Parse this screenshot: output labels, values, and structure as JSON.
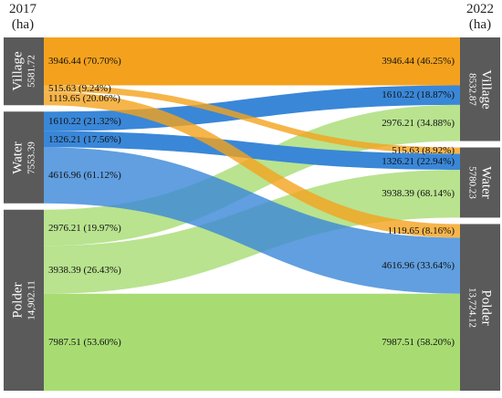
{
  "headers": {
    "left_year": "2017",
    "left_unit": "(ha)",
    "right_year": "2022",
    "right_unit": "(ha)"
  },
  "colors": {
    "node": "#5a5a5a",
    "village": "#f4a21d",
    "water": "#3a87d8",
    "polder": "#a8dc73"
  },
  "chart_data": {
    "type": "sankey",
    "unit": "ha",
    "left_year": "2017",
    "right_year": "2022",
    "nodes_left": [
      {
        "id": "village_2017",
        "name": "Village",
        "value_label": "5581.72",
        "value": 5581.72
      },
      {
        "id": "water_2017",
        "name": "Water",
        "value_label": "7553.39",
        "value": 7553.39
      },
      {
        "id": "polder_2017",
        "name": "Polder",
        "value_label": "14,902.11",
        "value": 14902.11
      }
    ],
    "nodes_right": [
      {
        "id": "village_2022",
        "name": "Village",
        "value_label": "8532.87",
        "value": 8532.87
      },
      {
        "id": "water_2022",
        "name": "Water",
        "value_label": "5780.23",
        "value": 5780.23
      },
      {
        "id": "polder_2022",
        "name": "Polder",
        "value_label": "13,724.12",
        "value": 13724.12
      }
    ],
    "flows": [
      {
        "from": "village_2017",
        "to": "village_2022",
        "value": 3946.44,
        "color": "village",
        "source_label": "3946.44 (70.70%)",
        "target_label": "3946.44 (46.25%)"
      },
      {
        "from": "village_2017",
        "to": "water_2022",
        "value": 515.63,
        "color": "village",
        "source_label": "515.63   (9.24%)",
        "target_label": "515.63    (8.92%)"
      },
      {
        "from": "village_2017",
        "to": "polder_2022",
        "value": 1119.65,
        "color": "village",
        "source_label": "1119.65 (20.06%)",
        "target_label": "1119.65 (8.16%)"
      },
      {
        "from": "water_2017",
        "to": "village_2022",
        "value": 1610.22,
        "color": "water",
        "source_label": "1610.22 (21.32%)",
        "target_label": "1610.22 (18.87%)"
      },
      {
        "from": "water_2017",
        "to": "water_2022",
        "value": 1326.21,
        "color": "water",
        "source_label": "1326.21 (17.56%)",
        "target_label": "1326.21 (22.94%)"
      },
      {
        "from": "water_2017",
        "to": "polder_2022",
        "value": 4616.96,
        "color": "water",
        "source_label": "4616.96 (61.12%)",
        "target_label": "4616.96 (33.64%)"
      },
      {
        "from": "polder_2017",
        "to": "village_2022",
        "value": 2976.21,
        "color": "polder",
        "source_label": "2976.21 (19.97%)",
        "target_label": "2976.21 (34.88%)"
      },
      {
        "from": "polder_2017",
        "to": "water_2022",
        "value": 3938.39,
        "color": "polder",
        "source_label": "3938.39 (26.43%)",
        "target_label": "3938.39 (68.14%)"
      },
      {
        "from": "polder_2017",
        "to": "polder_2022",
        "value": 7987.51,
        "color": "polder",
        "source_label": "7987.51 (53.60%)",
        "target_label": "7987.51 (58.20%)"
      }
    ]
  }
}
